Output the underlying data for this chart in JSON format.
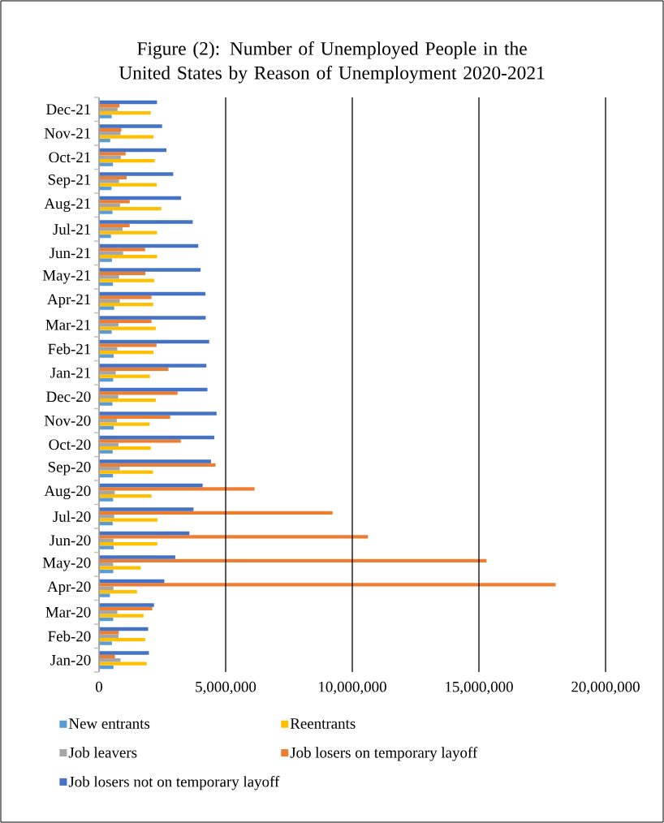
{
  "chart_data": {
    "type": "bar",
    "orientation": "horizontal",
    "title": "Figure (2): Number of Unemployed People in the United States by Reason of Unemployment 2020-2021",
    "categories": [
      "Dec-21",
      "Nov-21",
      "Oct-21",
      "Sep-21",
      "Aug-21",
      "Jul-21",
      "Jun-21",
      "May-21",
      "Apr-21",
      "Mar-21",
      "Feb-21",
      "Jan-21",
      "Dec-20",
      "Nov-20",
      "Oct-20",
      "Sep-20",
      "Aug-20",
      "Jul-20",
      "Jun-20",
      "May-20",
      "Apr-20",
      "Mar-20",
      "Feb-20",
      "Jan-20"
    ],
    "series": [
      {
        "name": "New entrants",
        "color": "#5b9bd5",
        "values": [
          500000,
          440000,
          550000,
          490000,
          530000,
          470000,
          510000,
          550000,
          600000,
          500000,
          580000,
          560000,
          530000,
          580000,
          540000,
          550000,
          560000,
          540000,
          580000,
          560000,
          430000,
          560000,
          510000,
          570000
        ]
      },
      {
        "name": "Reentrants",
        "color": "#ffc000",
        "values": [
          2040000,
          2150000,
          2200000,
          2280000,
          2460000,
          2290000,
          2290000,
          2180000,
          2140000,
          2240000,
          2150000,
          2010000,
          2240000,
          2000000,
          2040000,
          2130000,
          2070000,
          2310000,
          2300000,
          1650000,
          1500000,
          1760000,
          1820000,
          1880000
        ]
      },
      {
        "name": "Job leavers",
        "color": "#a5a5a5",
        "values": [
          730000,
          850000,
          860000,
          790000,
          830000,
          930000,
          950000,
          790000,
          820000,
          770000,
          720000,
          660000,
          760000,
          700000,
          770000,
          820000,
          620000,
          600000,
          570000,
          560000,
          570000,
          720000,
          770000,
          850000
        ]
      },
      {
        "name": "Job losers on temporary layoff",
        "color": "#ed7d31",
        "values": [
          810000,
          880000,
          1050000,
          1090000,
          1210000,
          1210000,
          1820000,
          1830000,
          2070000,
          2070000,
          2270000,
          2740000,
          3100000,
          2810000,
          3230000,
          4600000,
          6140000,
          9220000,
          10620000,
          15300000,
          18030000,
          2100000,
          780000,
          630000
        ]
      },
      {
        "name": "Job losers not on temporary layoff",
        "color": "#4472c4",
        "values": [
          2290000,
          2490000,
          2660000,
          2930000,
          3240000,
          3700000,
          3920000,
          4010000,
          4200000,
          4210000,
          4350000,
          4240000,
          4280000,
          4640000,
          4550000,
          4420000,
          4090000,
          3730000,
          3570000,
          3010000,
          2580000,
          2170000,
          1940000,
          1970000
        ]
      }
    ],
    "xlim": [
      0,
      20000000
    ],
    "xticks": [
      0,
      {
        "value": 5000000,
        "label": "5,000,000"
      },
      {
        "value": 10000000,
        "label": "10,000,000"
      },
      {
        "value": 15000000,
        "label": "15,000,000"
      },
      {
        "value": 20000000,
        "label": "20,000,000"
      }
    ],
    "grid": "x",
    "legend": "bottom"
  }
}
